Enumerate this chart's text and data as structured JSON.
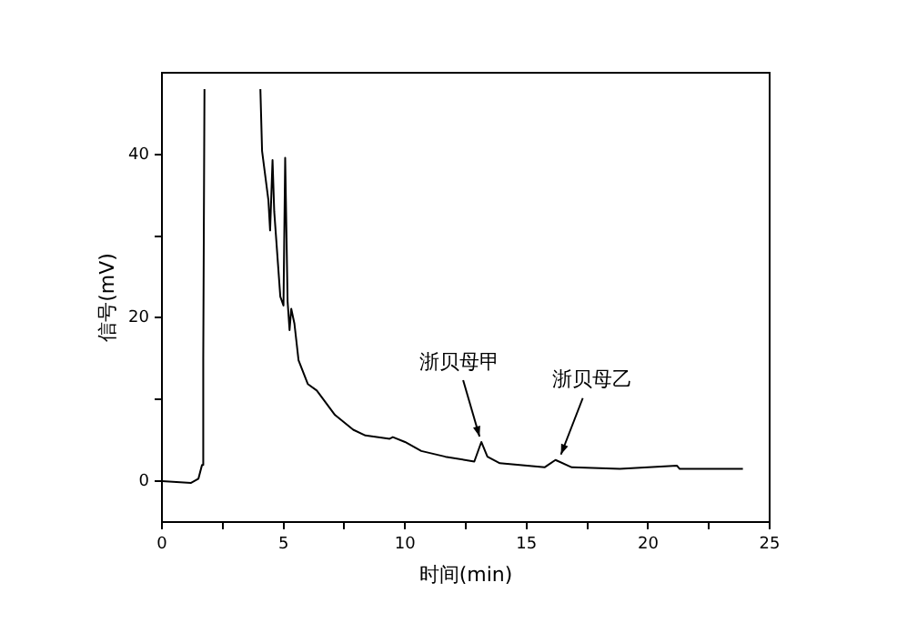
{
  "chart_data": {
    "type": "line",
    "xlabel": "时间(min)",
    "ylabel": "信号(mV)",
    "x": [
      0,
      1.2,
      1.5,
      1.65,
      1.7,
      1.75,
      3,
      4.05,
      4.12,
      4.38,
      4.45,
      4.55,
      4.62,
      4.87,
      5.0,
      5.07,
      5.17,
      5.25,
      5.32,
      5.45,
      5.62,
      6.0,
      6.37,
      7.12,
      7.87,
      8.37,
      9.37,
      9.5,
      10,
      10.67,
      11.66,
      12.85,
      13.14,
      13.39,
      13.9,
      15.74,
      16.19,
      16.86,
      18.84,
      21.19,
      21.3,
      23.9
    ],
    "series": [
      {
        "color": "#000000",
        "values": [
          0,
          -0.2,
          0.3,
          2,
          15,
          48,
          null,
          48,
          40.4,
          34.4,
          30.7,
          39.3,
          33,
          22.6,
          21.5,
          39.6,
          22,
          18.5,
          21.1,
          19.3,
          14.8,
          11.9,
          11.1,
          8.1,
          6.3,
          5.6,
          5.2,
          5.4,
          4.8,
          3.7,
          3.0,
          2.4,
          4.8,
          3.0,
          2.2,
          1.7,
          2.6,
          1.7,
          1.5,
          1.9,
          1.5,
          1.5
        ]
      }
    ],
    "xlim": [
      0,
      25
    ],
    "xticks": [
      0,
      {
        "value": 2.5,
        "label": null
      },
      5,
      {
        "value": 7.5,
        "label": null
      },
      10,
      {
        "value": 12.5,
        "label": null
      },
      15,
      {
        "value": 17.5,
        "label": null
      },
      20,
      {
        "value": 22.5,
        "label": null
      },
      25
    ],
    "ylim": [
      -5,
      50
    ],
    "yticks": [
      0,
      {
        "value": 10,
        "label": null
      },
      20,
      {
        "value": 30,
        "label": null
      },
      40
    ],
    "grid": false,
    "legend": false,
    "marker": "none",
    "line_style": "solid",
    "annotations": [
      {
        "text": "浙贝母甲",
        "x": 13.14,
        "y": 4.8
      },
      {
        "text": "浙贝母乙",
        "x": 16.19,
        "y": 2.6
      }
    ]
  }
}
